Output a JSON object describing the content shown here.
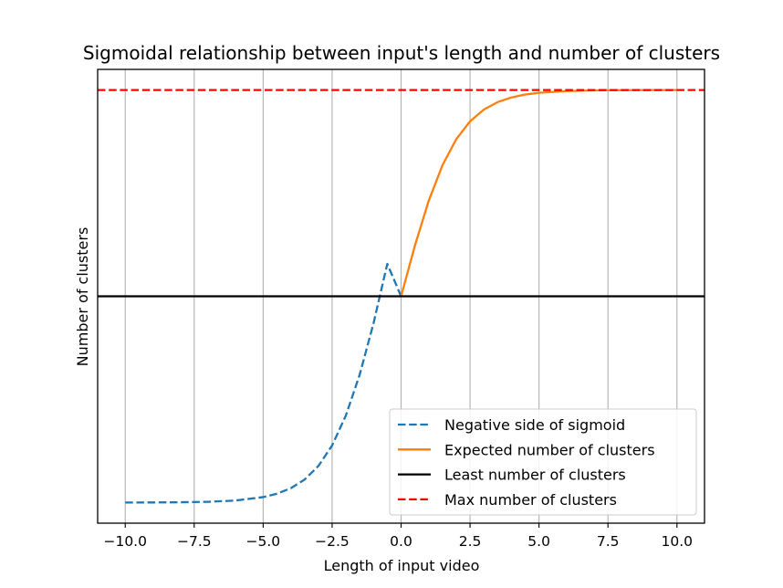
{
  "chart_data": {
    "type": "line",
    "title": "Sigmoidal relationship between input's length and number of clusters",
    "xlabel": "Length of input video",
    "ylabel": "Number of clusters",
    "xlim": [
      -11,
      11
    ],
    "ylim": [
      -0.05,
      1.05
    ],
    "grid": "vertical",
    "x_ticks": [
      -10.0,
      -7.5,
      -5.0,
      -2.5,
      0.0,
      2.5,
      5.0,
      7.5,
      10.0
    ],
    "x_tick_labels": [
      "−10.0",
      "−7.5",
      "−5.0",
      "−2.5",
      "0.0",
      "2.5",
      "5.0",
      "7.5",
      "10.0"
    ],
    "legend_position": "lower-right",
    "series": [
      {
        "name": "Negative side of sigmoid",
        "color": "#1f77b4",
        "style": "dashed",
        "x": [
          -10,
          -9,
          -8,
          -7,
          -6,
          -5,
          -4.5,
          -4,
          -3.5,
          -3,
          -2.5,
          -2,
          -1.5,
          -1,
          -0.5,
          0
        ],
        "y": [
          0.0001,
          0.0002,
          0.0007,
          0.0018,
          0.0049,
          0.0132,
          0.0214,
          0.0346,
          0.0556,
          0.0884,
          0.1384,
          0.2113,
          0.3101,
          0.4342,
          0.5786,
          0.5
        ]
      },
      {
        "name": "Expected number of clusters",
        "color": "#ff7f0e",
        "style": "solid",
        "x": [
          0,
          0.5,
          1,
          1.5,
          2,
          2.5,
          3,
          3.5,
          4,
          4.5,
          5,
          6,
          7,
          8,
          9,
          10
        ],
        "y": [
          0.5,
          0.6225,
          0.7311,
          0.8176,
          0.8808,
          0.9241,
          0.9526,
          0.9707,
          0.982,
          0.989,
          0.9933,
          0.9975,
          0.9991,
          0.9997,
          0.9999,
          1.0
        ]
      },
      {
        "name": "Least number of clusters",
        "color": "#000000",
        "style": "solid",
        "x": [
          -11,
          11
        ],
        "y": [
          0.5,
          0.5
        ]
      },
      {
        "name": "Max number of clusters",
        "color": "#ff0000",
        "style": "dashed",
        "x": [
          -11,
          11
        ],
        "y": [
          1.0,
          1.0
        ]
      }
    ]
  }
}
